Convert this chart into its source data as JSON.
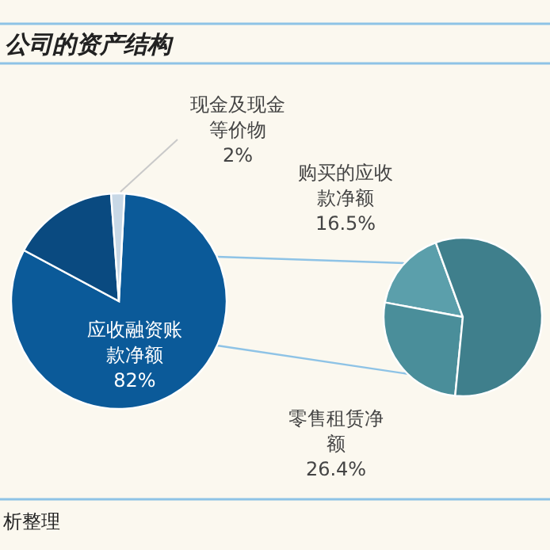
{
  "chart_data": [
    {
      "type": "pie",
      "title": "公司的资产结构",
      "annotations": [
        "析整理"
      ],
      "categories": [
        "应收融资账款净额",
        null,
        "现金及现金等价物"
      ],
      "values": [
        82,
        16,
        2
      ],
      "colors": [
        "#0b5a99",
        "#0a4a80",
        "#c8d8e6"
      ],
      "value_labels": [
        "82%",
        null,
        "2%"
      ]
    },
    {
      "type": "pie",
      "categories": [
        "购买的应收款净额",
        "零售租赁净额",
        null
      ],
      "values": [
        16.5,
        26.4,
        57.1
      ],
      "colors": [
        "#5b9fab",
        "#4a8e9a",
        "#3f7f8c"
      ],
      "value_labels": [
        "16.5%",
        "26.4%",
        null
      ]
    }
  ]
}
